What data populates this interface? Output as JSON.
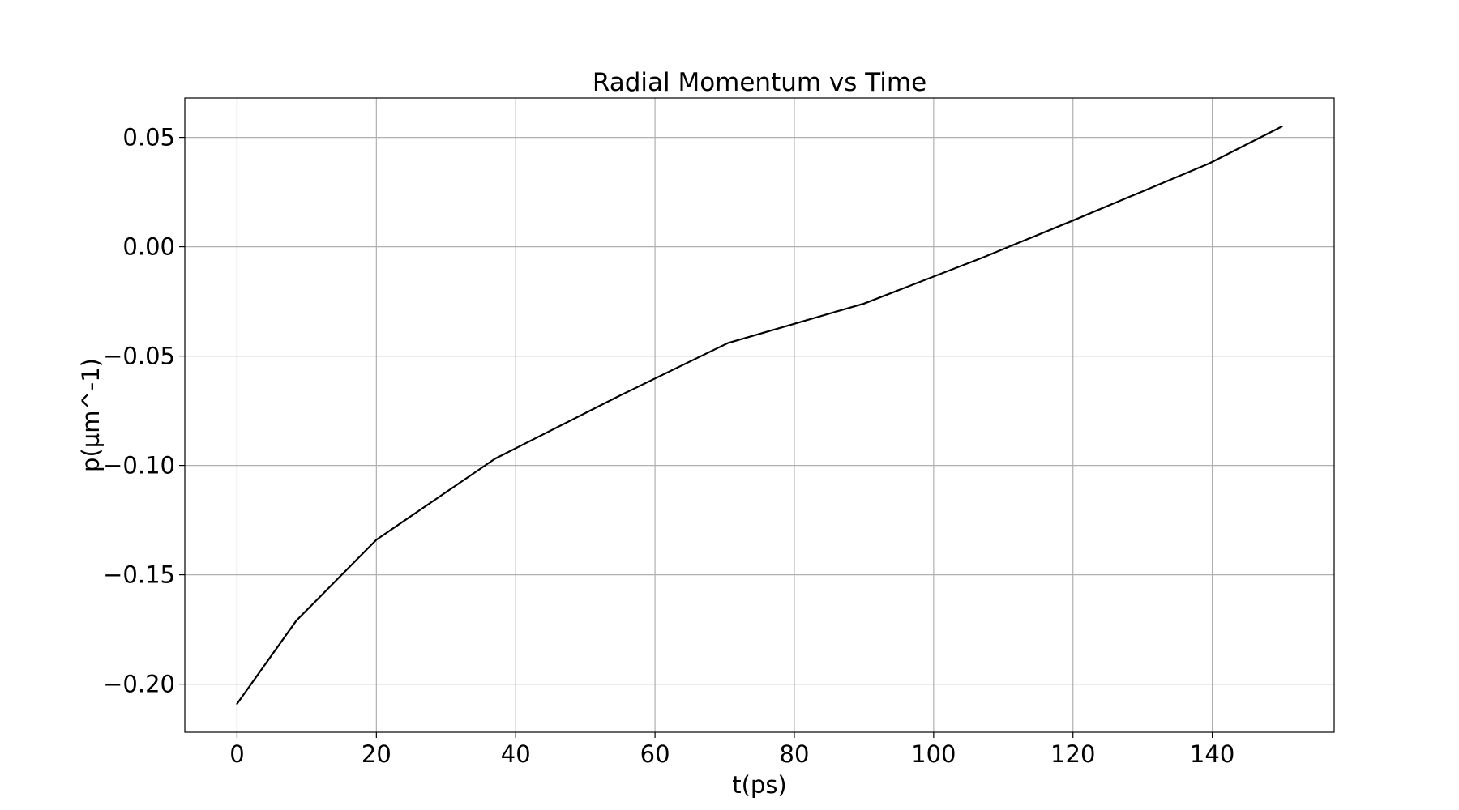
{
  "chart_data": {
    "type": "line",
    "title": "Radial Momentum vs Time",
    "xlabel": "t(ps)",
    "ylabel": "p(µm^-1)",
    "xlim": [
      -7.5,
      157.5
    ],
    "ylim": [
      -0.222,
      0.068
    ],
    "xticks": [
      0,
      20,
      40,
      60,
      80,
      100,
      120,
      140
    ],
    "xtick_labels": [
      "0",
      "20",
      "40",
      "60",
      "80",
      "100",
      "120",
      "140"
    ],
    "yticks": [
      -0.2,
      -0.15,
      -0.1,
      -0.05,
      0.0,
      0.05
    ],
    "ytick_labels": [
      "−0.20",
      "−0.15",
      "−0.10",
      "−0.05",
      "0.00",
      "0.05"
    ],
    "grid": true,
    "series": [
      {
        "color": "#000000",
        "x": [
          0,
          8.5,
          20,
          37,
          55,
          70.5,
          90,
          107,
          120,
          139.5,
          150
        ],
        "y": [
          -0.209,
          -0.171,
          -0.134,
          -0.097,
          -0.068,
          -0.044,
          -0.026,
          -0.005,
          0.012,
          0.038,
          0.055
        ]
      }
    ]
  }
}
